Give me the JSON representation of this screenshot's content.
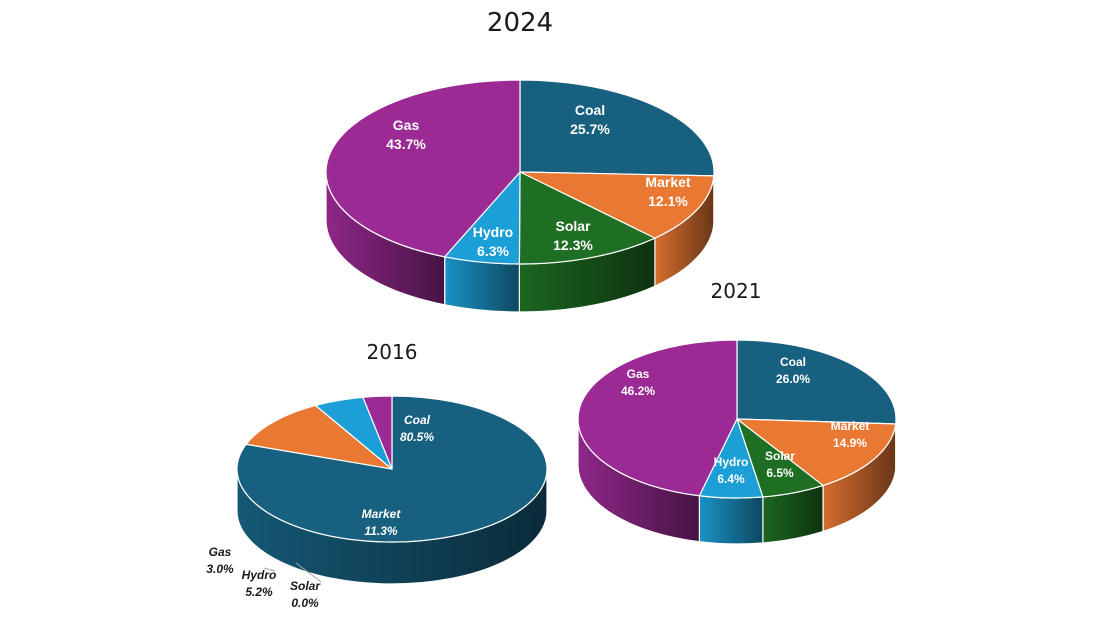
{
  "colors": {
    "Coal": "#17607f",
    "Market": "#e97833",
    "Solar": "#1e6f23",
    "Hydro": "#1c9fd6",
    "Gas": "#9b2a95"
  },
  "chart_data": [
    {
      "type": "pie",
      "title": "2024",
      "slices": [
        {
          "label": "Coal",
          "value": 25.7,
          "value_text": "25.7%"
        },
        {
          "label": "Market",
          "value": 12.1,
          "value_text": "12.1%"
        },
        {
          "label": "Solar",
          "value": 12.3,
          "value_text": "12.3%"
        },
        {
          "label": "Hydro",
          "value": 6.3,
          "value_text": "6.3%"
        },
        {
          "label": "Gas",
          "value": 43.7,
          "value_text": "43.7%"
        }
      ]
    },
    {
      "type": "pie",
      "title": "2021",
      "slices": [
        {
          "label": "Coal",
          "value": 26.0,
          "value_text": "26.0%"
        },
        {
          "label": "Market",
          "value": 14.9,
          "value_text": "14.9%"
        },
        {
          "label": "Solar",
          "value": 6.5,
          "value_text": "6.5%"
        },
        {
          "label": "Hydro",
          "value": 6.4,
          "value_text": "6.4%"
        },
        {
          "label": "Gas",
          "value": 46.2,
          "value_text": "46.2%"
        }
      ]
    },
    {
      "type": "pie",
      "title": "2016",
      "slices": [
        {
          "label": "Coal",
          "value": 80.5,
          "value_text": "80.5%"
        },
        {
          "label": "Market",
          "value": 11.3,
          "value_text": "11.3%"
        },
        {
          "label": "Solar",
          "value": 0.0,
          "value_text": "0.0%"
        },
        {
          "label": "Hydro",
          "value": 5.2,
          "value_text": "5.2%"
        },
        {
          "label": "Gas",
          "value": 3.0,
          "value_text": "3.0%"
        }
      ]
    }
  ]
}
